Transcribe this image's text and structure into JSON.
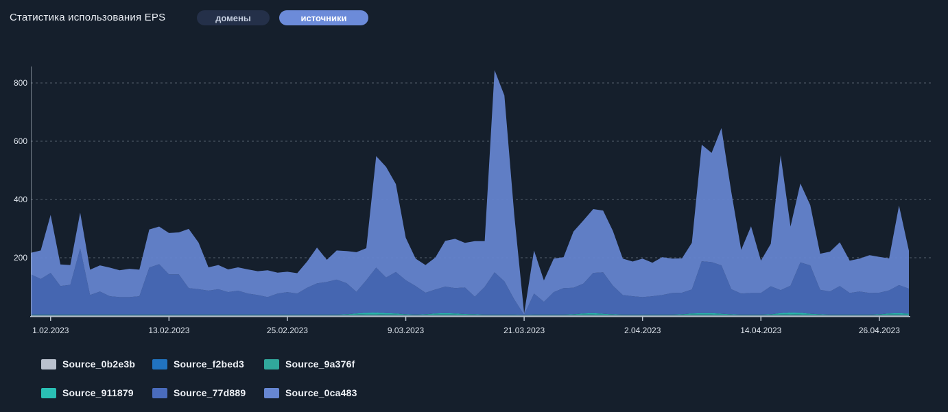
{
  "header": {
    "title": "Статистика использования EPS",
    "toggles": [
      {
        "label": "домены",
        "active": false
      },
      {
        "label": "источники",
        "active": true
      }
    ]
  },
  "colors": {
    "background": "#151f2c",
    "accent_active_pill": "#6c8bd9",
    "inactive_pill": "#243049",
    "grid_line": "#aebacb",
    "axis_line": "#c9d2de",
    "axis_text": "#dde3eb"
  },
  "chart_data": {
    "type": "area",
    "stacked": true,
    "title": "Статистика использования EPS",
    "xlabel": "",
    "ylabel": "",
    "ylim": [
      0,
      880
    ],
    "y_ticks": [
      200,
      400,
      600,
      800
    ],
    "grid": "horizontal-dashed",
    "legend_position": "bottom",
    "n_points": 90,
    "x_ticks": [
      {
        "index": 2,
        "label": "1.02.2023"
      },
      {
        "index": 14,
        "label": "13.02.2023"
      },
      {
        "index": 26,
        "label": "25.02.2023"
      },
      {
        "index": 38,
        "label": "9.03.2023"
      },
      {
        "index": 50,
        "label": "21.03.2023"
      },
      {
        "index": 62,
        "label": "2.04.2023"
      },
      {
        "index": 74,
        "label": "14.04.2023"
      },
      {
        "index": 86,
        "label": "26.04.2023"
      }
    ],
    "series": [
      {
        "name": "Source_0b2e3b",
        "color": "#b9c1ce",
        "values": [
          2,
          2,
          2,
          2,
          2,
          2,
          2,
          2,
          2,
          2,
          2,
          2,
          2,
          2,
          2,
          2,
          2,
          2,
          2,
          2,
          2,
          2,
          2,
          2,
          2,
          2,
          2,
          2,
          2,
          2,
          2,
          2,
          2,
          2,
          2,
          2,
          2,
          2,
          2,
          2,
          2,
          2,
          2,
          2,
          2,
          2,
          2,
          2,
          2,
          2,
          2,
          2,
          2,
          2,
          2,
          2,
          2,
          2,
          2,
          2,
          2,
          2,
          2,
          2,
          2,
          2,
          2,
          2,
          2,
          2,
          2,
          2,
          2,
          2,
          2,
          2,
          2,
          2,
          2,
          2,
          2,
          2,
          2,
          2,
          2,
          2,
          2,
          2,
          2,
          2
        ]
      },
      {
        "name": "Source_f2bed3",
        "color": "#2173c0",
        "values": [
          1,
          1,
          1,
          1,
          1,
          1,
          1,
          1,
          1,
          1,
          1,
          1,
          1,
          1,
          1,
          1,
          1,
          1,
          1,
          1,
          1,
          1,
          1,
          1,
          1,
          1,
          1,
          1,
          1,
          1,
          1,
          1,
          1,
          1,
          1,
          1,
          1,
          1,
          1,
          1,
          1,
          1,
          1,
          1,
          1,
          1,
          1,
          1,
          1,
          1,
          1,
          1,
          1,
          1,
          1,
          1,
          1,
          1,
          1,
          1,
          1,
          1,
          1,
          1,
          1,
          1,
          1,
          1,
          1,
          1,
          1,
          1,
          1,
          1,
          1,
          1,
          1,
          1,
          1,
          1,
          1,
          1,
          1,
          1,
          1,
          1,
          1,
          1,
          1,
          1
        ]
      },
      {
        "name": "Source_9a376f",
        "color": "#31a89c",
        "values": [
          1,
          1,
          1,
          1,
          1,
          1,
          1,
          1,
          1,
          1,
          1,
          1,
          1,
          1,
          1,
          1,
          1,
          1,
          1,
          1,
          1,
          1,
          1,
          1,
          1,
          1,
          1,
          1,
          1,
          1,
          1,
          1,
          2,
          3,
          4,
          4,
          3,
          3,
          2,
          1,
          2,
          3,
          3,
          3,
          2,
          2,
          1,
          1,
          1,
          1,
          1,
          1,
          1,
          1,
          1,
          2,
          3,
          3,
          2,
          2,
          1,
          1,
          1,
          1,
          1,
          1,
          2,
          3,
          3,
          3,
          2,
          2,
          1,
          1,
          1,
          2,
          3,
          4,
          3,
          2,
          2,
          1,
          1,
          1,
          1,
          1,
          2,
          3,
          3,
          2
        ]
      },
      {
        "name": "Source_911879",
        "color": "#2ac0b5",
        "values": [
          1,
          1,
          1,
          1,
          1,
          1,
          1,
          1,
          1,
          1,
          1,
          1,
          1,
          1,
          1,
          1,
          1,
          1,
          1,
          1,
          1,
          1,
          1,
          1,
          1,
          1,
          1,
          1,
          1,
          1,
          1,
          1,
          1,
          3,
          4,
          5,
          4,
          3,
          1,
          1,
          1,
          3,
          4,
          3,
          2,
          1,
          1,
          1,
          1,
          1,
          0,
          1,
          1,
          1,
          1,
          1,
          3,
          4,
          3,
          1,
          1,
          1,
          1,
          1,
          1,
          1,
          1,
          3,
          4,
          4,
          3,
          1,
          1,
          1,
          1,
          1,
          4,
          5,
          5,
          3,
          1,
          1,
          1,
          1,
          1,
          1,
          1,
          3,
          4,
          3
        ]
      },
      {
        "name": "Source_77d889",
        "color": "#4a6cbd",
        "values": [
          138,
          122,
          143,
          98,
          102,
          227,
          67,
          79,
          63,
          60,
          60,
          63,
          161,
          173,
          138,
          138,
          91,
          87,
          82,
          87,
          77,
          82,
          72,
          67,
          60,
          72,
          77,
          72,
          92,
          107,
          112,
          120,
          107,
          74,
          112,
          154,
          122,
          142,
          117,
          98,
          74,
          82,
          91,
          87,
          91,
          60,
          95,
          145,
          114,
          52,
          0,
          72,
          44,
          77,
          91,
          91,
          102,
          138,
          142,
          98,
          67,
          63,
          60,
          63,
          67,
          74,
          74,
          82,
          178,
          175,
          166,
          86,
          72,
          74,
          74,
          96,
          79,
          92,
          173,
          166,
          84,
          79,
          98,
          74,
          79,
          74,
          74,
          79,
          96,
          86
        ]
      },
      {
        "name": "Source_0ca483",
        "color": "#6787d3",
        "values": [
          74,
          98,
          199,
          74,
          68,
          123,
          87,
          90,
          98,
          92,
          97,
          91,
          131,
          129,
          142,
          144,
          203,
          160,
          80,
          83,
          78,
          80,
          83,
          82,
          92,
          72,
          70,
          70,
          90,
          123,
          76,
          100,
          110,
          136,
          110,
          383,
          380,
          302,
          146,
          94,
          95,
          110,
          157,
          169,
          153,
          191,
          157,
          694,
          638,
          290,
          5,
          148,
          73,
          115,
          106,
          193,
          217,
          219,
          212,
          188,
          125,
          119,
          132,
          115,
          130,
          118,
          118,
          160,
          400,
          375,
          471,
          334,
          150,
          229,
          111,
          146,
          463,
          203,
          271,
          207,
          124,
          137,
          150,
          111,
          113,
          130,
          123,
          110,
          273,
          130
        ]
      }
    ]
  }
}
